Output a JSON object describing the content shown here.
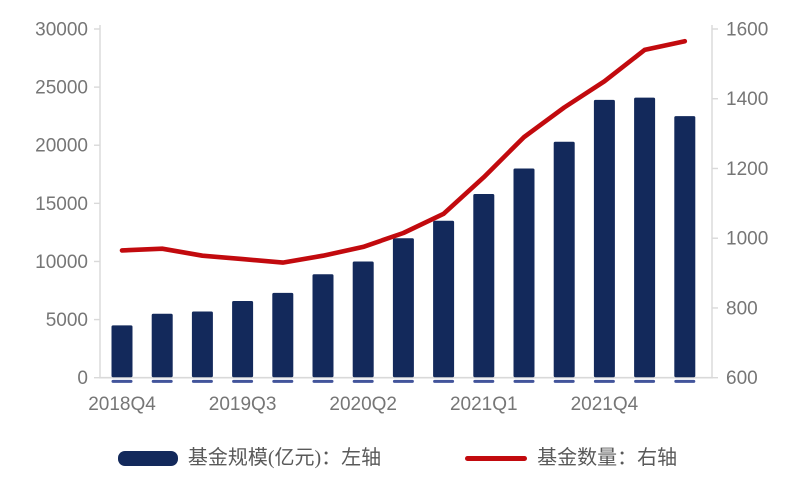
{
  "chart_data": {
    "type": "combo",
    "title": "",
    "categories": [
      "2018Q4",
      "2019Q1",
      "2019Q2",
      "2019Q3",
      "2019Q4",
      "2020Q1",
      "2020Q2",
      "2020Q3",
      "2020Q4",
      "2021Q1",
      "2021Q2",
      "2021Q3",
      "2021Q4",
      "2022Q1",
      "2022Q2"
    ],
    "series": [
      {
        "name": "基金规模(亿元)：左轴",
        "type": "bar",
        "axis": "left",
        "values": [
          4500,
          5500,
          5700,
          6600,
          7300,
          8900,
          10000,
          12000,
          13500,
          15800,
          18000,
          20300,
          23900,
          24100,
          22500
        ]
      },
      {
        "name": "基金数量：右轴",
        "type": "line",
        "axis": "right",
        "values": [
          965,
          970,
          950,
          940,
          930,
          950,
          975,
          1015,
          1070,
          1175,
          1290,
          1375,
          1450,
          1540,
          1565
        ]
      }
    ],
    "left_axis": {
      "min": 0,
      "max": 30000,
      "ticks": [
        0,
        5000,
        10000,
        15000,
        20000,
        25000,
        30000
      ]
    },
    "right_axis": {
      "min": 600,
      "max": 1600,
      "ticks": [
        600,
        800,
        1000,
        1200,
        1400,
        1600
      ]
    },
    "x_axis": {
      "tick_labels": [
        "2018Q4",
        "2019Q3",
        "2020Q2",
        "2021Q1",
        "2021Q4"
      ],
      "tick_indices": [
        0,
        3,
        6,
        9,
        12
      ]
    },
    "grid": "off",
    "legend_position": "bottom",
    "colors": {
      "bar": "#13295B",
      "bar_base_dash": "#42549B",
      "line": "#C20A0E",
      "axis_text": "#767676",
      "legend_text": "#595959",
      "axis_line": "#D9D9D9"
    }
  }
}
